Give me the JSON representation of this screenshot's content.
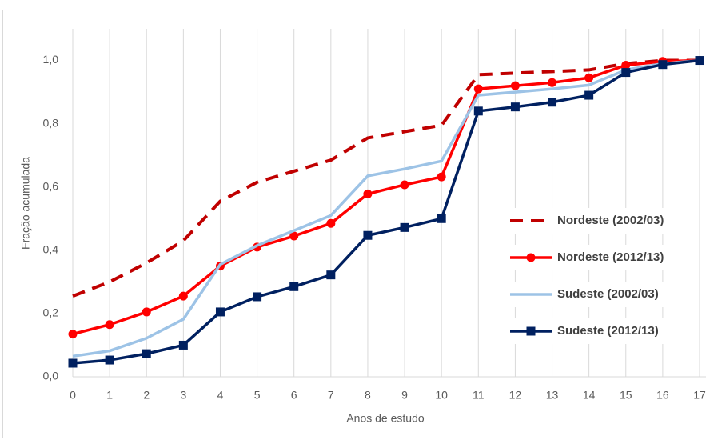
{
  "chart_data": {
    "type": "line",
    "y_label": "Fração acumulada",
    "x_label": "Anos de estudo",
    "x": [
      0,
      1,
      2,
      3,
      4,
      5,
      6,
      7,
      8,
      9,
      10,
      11,
      12,
      13,
      14,
      15,
      16,
      17
    ],
    "xlim": [
      0,
      17
    ],
    "xticks": [
      0,
      1,
      2,
      3,
      4,
      5,
      6,
      7,
      8,
      9,
      10,
      11,
      12,
      13,
      14,
      15,
      16,
      17
    ],
    "ylim": [
      0,
      1.1
    ],
    "yticks": [
      {
        "value": 0,
        "label": "0,0"
      },
      {
        "value": 0.2,
        "label": "0,2"
      },
      {
        "value": 0.4,
        "label": "0,4"
      },
      {
        "value": 0.6,
        "label": "0,6"
      },
      {
        "value": 0.8,
        "label": "0,8"
      },
      {
        "value": 1,
        "label": "1,0"
      }
    ],
    "grid": "x",
    "legend": "right",
    "series": [
      {
        "name": "Nordeste (2002/03)",
        "color": "#c00000",
        "dash": true,
        "marker": null,
        "values": [
          0.255,
          0.3,
          0.36,
          0.43,
          0.555,
          0.615,
          0.65,
          0.685,
          0.755,
          0.775,
          0.795,
          0.955,
          0.96,
          0.965,
          0.97,
          0.99,
          1.0,
          1.0
        ]
      },
      {
        "name": "Nordeste (2012/13)",
        "color": "#ff0000",
        "dash": false,
        "marker": "circle",
        "values": [
          0.135,
          0.165,
          0.205,
          0.255,
          0.35,
          0.41,
          0.445,
          0.485,
          0.578,
          0.607,
          0.632,
          0.91,
          0.92,
          0.93,
          0.945,
          0.985,
          0.997,
          1.0
        ]
      },
      {
        "name": "Sudeste (2002/03)",
        "color": "#9dc3e6",
        "dash": false,
        "marker": null,
        "values": [
          0.065,
          0.082,
          0.122,
          0.182,
          0.355,
          0.415,
          0.462,
          0.51,
          0.635,
          0.657,
          0.682,
          0.89,
          0.9,
          0.91,
          0.922,
          0.97,
          0.99,
          1.0
        ]
      },
      {
        "name": "Sudeste (2012/13)",
        "color": "#002060",
        "dash": false,
        "marker": "square",
        "values": [
          0.043,
          0.053,
          0.073,
          0.1,
          0.205,
          0.253,
          0.285,
          0.322,
          0.447,
          0.472,
          0.5,
          0.84,
          0.853,
          0.868,
          0.89,
          0.962,
          0.987,
          1.0
        ]
      }
    ]
  }
}
